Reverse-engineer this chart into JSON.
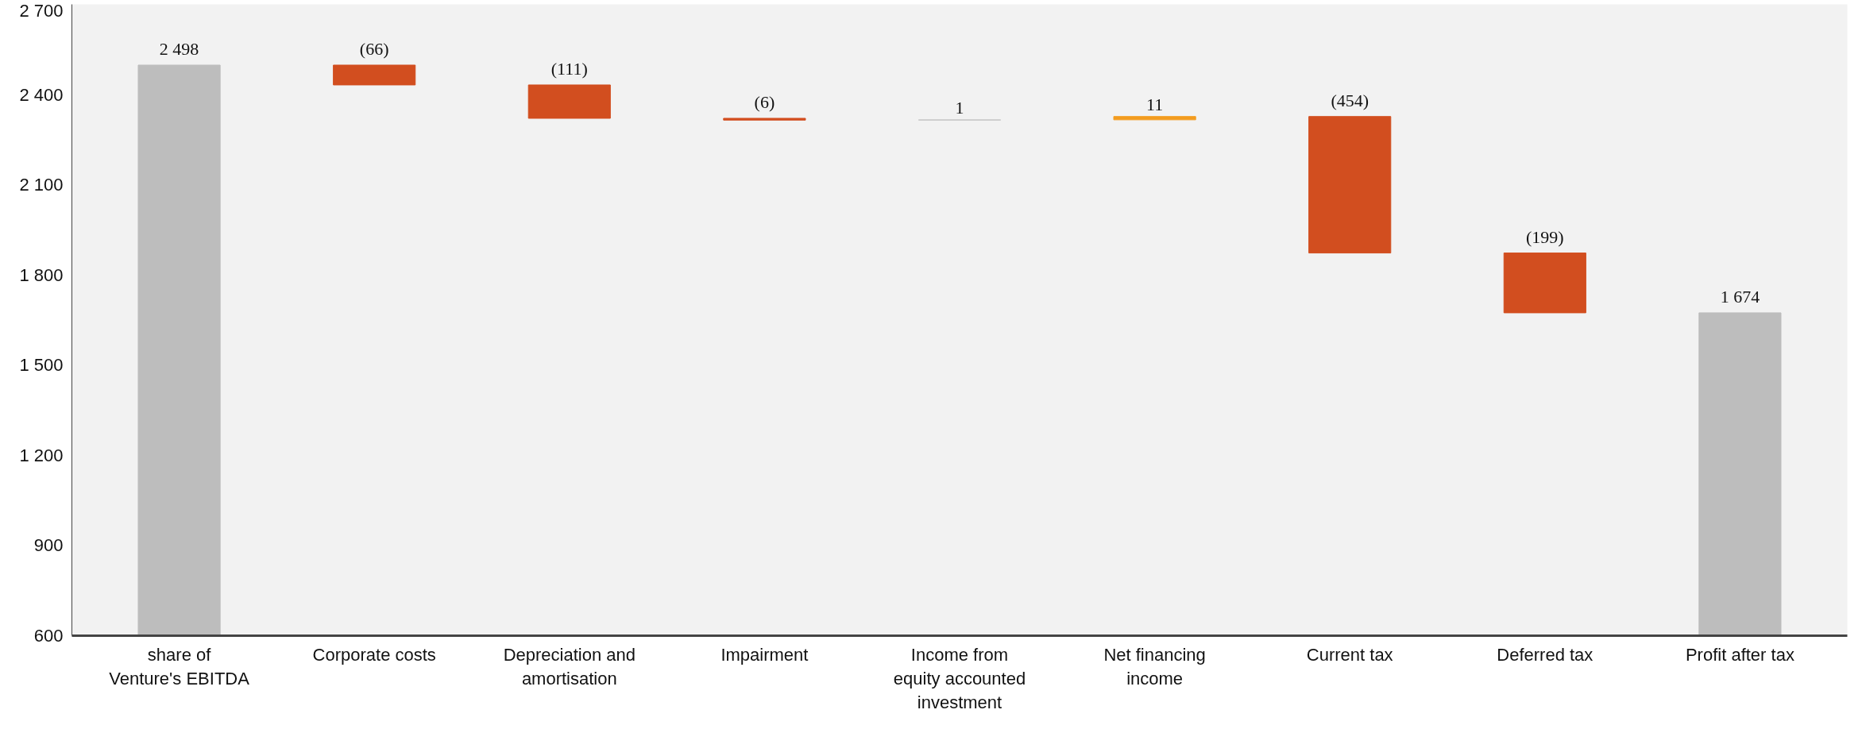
{
  "chart_data": {
    "type": "bar",
    "categories": [
      "share of Venture's EBITDA",
      "Corporate costs",
      "Depreciation and amortisation",
      "Impairment",
      "Income from equity accounted investment",
      "Net financing income",
      "Current tax",
      "Deferred tax",
      "Profit after tax"
    ],
    "values": [
      2498,
      -66,
      -111,
      -6,
      1,
      11,
      -454,
      -199,
      1674
    ],
    "base": [
      0,
      2498,
      2432,
      2321,
      2315,
      2316,
      2327,
      1873,
      0
    ],
    "colors": [
      "#bdbdbd",
      "#d24e1f",
      "#d24e1f",
      "#d24e1f",
      "#c8c8c8",
      "#f39c1f",
      "#d24e1f",
      "#d24e1f",
      "#bdbdbd"
    ],
    "value_labels": [
      "2 498",
      "(66)",
      "(111)",
      "(6)",
      "1",
      "11",
      "(454)",
      "(199)",
      "1 674"
    ],
    "ylim": [
      600,
      2700
    ],
    "yticks": [
      {
        "value": 600,
        "label": "600"
      },
      {
        "value": 900,
        "label": "900"
      },
      {
        "value": 1200,
        "label": "1 200"
      },
      {
        "value": 1500,
        "label": "1 500"
      },
      {
        "value": 1800,
        "label": "1 800"
      },
      {
        "value": 2100,
        "label": "2 100"
      },
      {
        "value": 2400,
        "label": "2 400"
      },
      {
        "value": 2700,
        "label": "2 700"
      }
    ],
    "grid": false
  }
}
